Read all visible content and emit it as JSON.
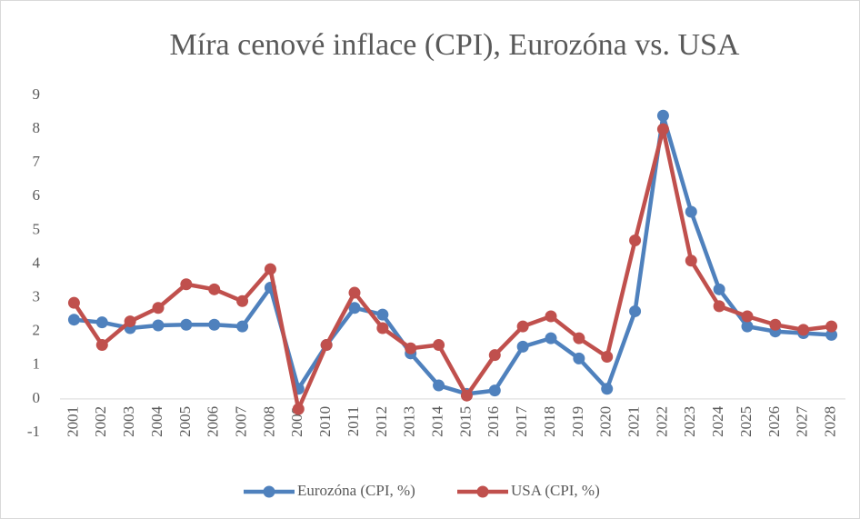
{
  "chart_data": {
    "type": "line",
    "title": "Míra cenové inflace (CPI), Eurozóna vs. USA",
    "categories": [
      "2001",
      "2002",
      "2003",
      "2004",
      "2005",
      "2006",
      "2007",
      "2008",
      "2009",
      "2010",
      "2011",
      "2012",
      "2013",
      "2014",
      "2015",
      "2016",
      "2017",
      "2018",
      "2019",
      "2020",
      "2021",
      "2022",
      "2023",
      "2024",
      "2025",
      "2026",
      "2027",
      "2028"
    ],
    "series": [
      {
        "name": "Eurozóna (CPI, %)",
        "color": "#4f81bd",
        "values": [
          2.35,
          2.27,
          2.1,
          2.18,
          2.2,
          2.2,
          2.15,
          3.3,
          0.3,
          1.6,
          2.7,
          2.5,
          1.35,
          0.4,
          0.15,
          0.25,
          1.55,
          1.8,
          1.2,
          0.3,
          2.6,
          8.4,
          5.55,
          3.25,
          2.15,
          2.0,
          1.95,
          1.9
        ]
      },
      {
        "name": "USA (CPI, %)",
        "color": "#c0504d",
        "values": [
          2.85,
          1.6,
          2.3,
          2.7,
          3.4,
          3.25,
          2.9,
          3.85,
          -0.3,
          1.6,
          3.15,
          2.1,
          1.5,
          1.6,
          0.1,
          1.3,
          2.15,
          2.45,
          1.8,
          1.25,
          4.7,
          8.0,
          4.1,
          2.75,
          2.45,
          2.2,
          2.05,
          2.15
        ]
      }
    ],
    "ylim": [
      -1,
      9
    ],
    "yticks": [
      -1,
      0,
      1,
      2,
      3,
      4,
      5,
      6,
      7,
      8,
      9
    ],
    "grid": false,
    "legend": "bottom"
  }
}
